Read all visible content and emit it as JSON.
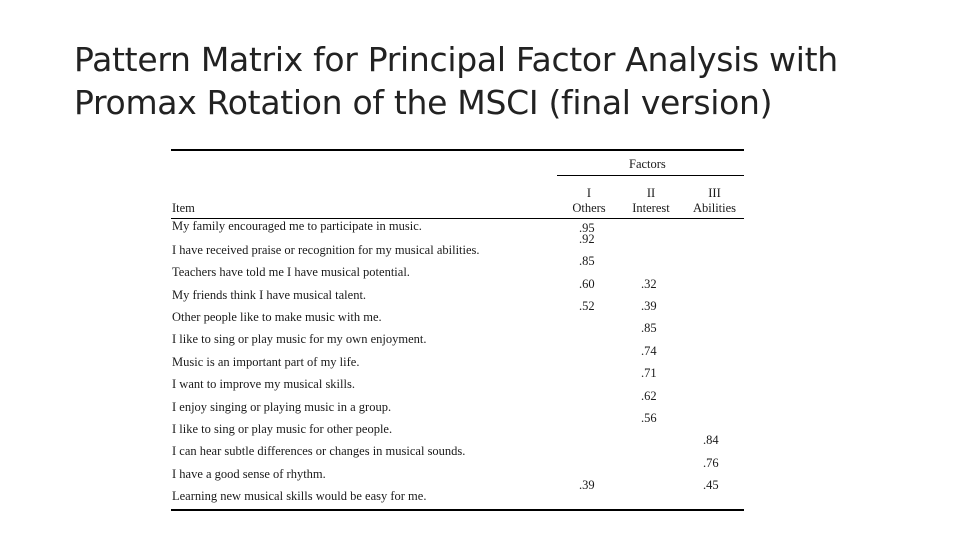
{
  "slide": {
    "title_line1": "Pattern Matrix for Principal Factor Analysis with",
    "title_line2": "Promax Rotation of the MSCI (final version)"
  },
  "table": {
    "factors_label": "Factors",
    "item_label": "Item",
    "columns": [
      {
        "numeral": "I",
        "name": "Others"
      },
      {
        "numeral": "II",
        "name": "Interest"
      },
      {
        "numeral": "III",
        "name": "Abilities"
      }
    ],
    "rows": [
      {
        "item": "My family encouraged me to participate in music.",
        "f1": ".95",
        "f2": "",
        "f3": ""
      },
      {
        "item": "I have received praise or recognition for my musical abilities.",
        "f1": ".92",
        "f2": "",
        "f3": ""
      },
      {
        "item": "Teachers have told me I have musical potential.",
        "f1": ".85",
        "f2": "",
        "f3": ""
      },
      {
        "item": "My friends think I have musical talent.",
        "f1": ".60",
        "f2": ".32",
        "f3": ""
      },
      {
        "item": "Other people like to make music with me.",
        "f1": ".52",
        "f2": ".39",
        "f3": ""
      },
      {
        "item": "I like to sing or play music for my own enjoyment.",
        "f1": "",
        "f2": ".85",
        "f3": ""
      },
      {
        "item": "Music is an important part of my life.",
        "f1": "",
        "f2": ".74",
        "f3": ""
      },
      {
        "item": "I want to improve my musical skills.",
        "f1": "",
        "f2": ".71",
        "f3": ""
      },
      {
        "item": "I enjoy singing or playing music in a group.",
        "f1": "",
        "f2": ".62",
        "f3": ""
      },
      {
        "item": "I like to sing or play music for other people.",
        "f1": "",
        "f2": ".56",
        "f3": ""
      },
      {
        "item": "I can hear subtle differences or changes in musical sounds.",
        "f1": "",
        "f2": "",
        "f3": ".84"
      },
      {
        "item": "I have a good sense of rhythm.",
        "f1": "",
        "f2": "",
        "f3": ".76"
      },
      {
        "item": "Learning new musical skills would be easy for me.",
        "f1": ".39",
        "f2": "",
        "f3": ".45"
      }
    ]
  }
}
